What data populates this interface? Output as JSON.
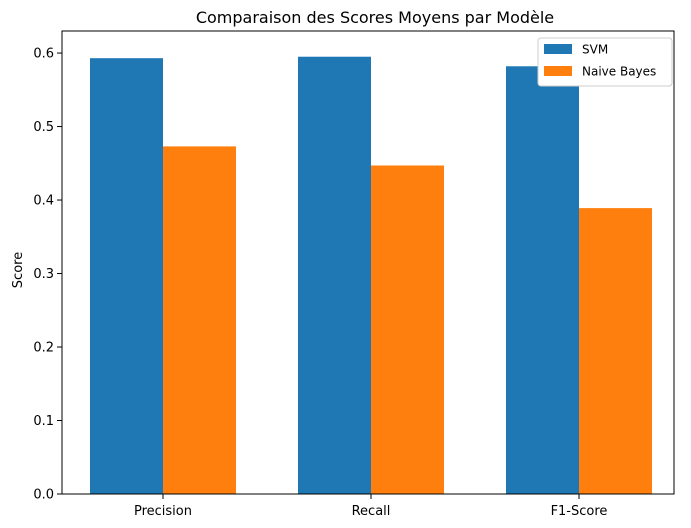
{
  "chart_data": {
    "type": "bar",
    "title": "Comparaison des Scores Moyens par Modèle",
    "xlabel": "",
    "ylabel": "Score",
    "categories": [
      "Precision",
      "Recall",
      "F1-Score"
    ],
    "series": [
      {
        "name": "SVM",
        "color": "#1f77b4",
        "values": [
          0.593,
          0.595,
          0.582
        ]
      },
      {
        "name": "Naive Bayes",
        "color": "#ff7f0e",
        "values": [
          0.473,
          0.447,
          0.389
        ]
      }
    ],
    "ylim": [
      0,
      0.63
    ],
    "yticks": [
      0.0,
      0.1,
      0.2,
      0.3,
      0.4,
      0.5,
      0.6
    ],
    "ytick_labels": [
      "0.0",
      "0.1",
      "0.2",
      "0.3",
      "0.4",
      "0.5",
      "0.6"
    ],
    "grid": false,
    "legend_position": "top-right"
  }
}
